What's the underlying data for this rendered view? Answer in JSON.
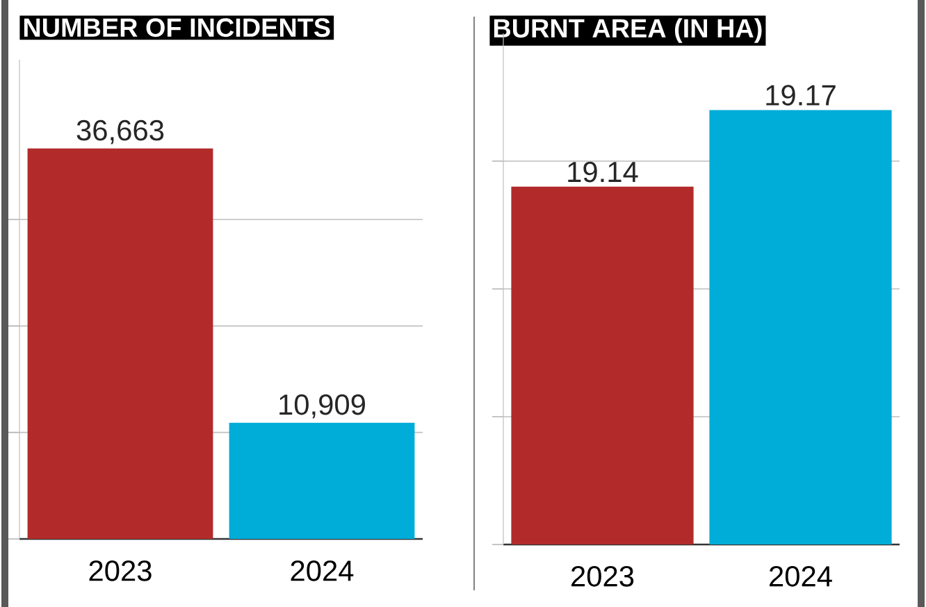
{
  "chart_data": [
    {
      "type": "bar",
      "title": "NUMBER OF INCIDENTS",
      "categories": [
        "2023",
        "2024"
      ],
      "values": [
        36663,
        10909
      ],
      "value_labels": [
        "36,663",
        "10,909"
      ],
      "colors": [
        "#b22b2a",
        "#00acd8"
      ],
      "ylim": [
        0,
        45000
      ],
      "yticks": [
        {
          "value": 0,
          "label": null
        },
        {
          "value": 10000,
          "label": null
        },
        {
          "value": 20000,
          "label": null
        },
        {
          "value": 30000,
          "label": null
        }
      ],
      "grid": "y"
    },
    {
      "type": "bar",
      "title": "BURNT AREA (IN HA)",
      "categories": [
        "2023",
        "2024"
      ],
      "values": [
        19.14,
        19.17
      ],
      "value_labels": [
        "19.14",
        "19.17"
      ],
      "colors": [
        "#b22b2a",
        "#00acd8"
      ],
      "ylim": [
        19.0,
        19.2
      ],
      "yticks": [
        {
          "value": 19.0,
          "label": null
        },
        {
          "value": 19.05,
          "label": null
        },
        {
          "value": 19.1,
          "label": null
        },
        {
          "value": 19.15,
          "label": null
        }
      ],
      "grid": "y"
    }
  ]
}
